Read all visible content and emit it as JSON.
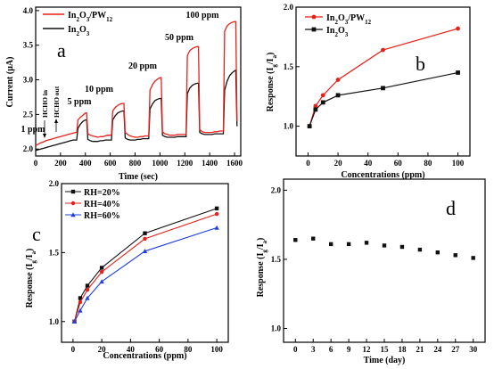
{
  "colors": {
    "red": "#e8201a",
    "black": "#111111",
    "blue": "#1f3fe0"
  },
  "chart_data": [
    {
      "panel": "a",
      "type": "line",
      "xlabel": "Time (sec)",
      "ylabel": "Current (μA)",
      "xlim": [
        0,
        1650
      ],
      "ylim": [
        1.9,
        4.05
      ],
      "xticks": [
        "0",
        "200",
        "400",
        "600",
        "800",
        "1000",
        "1200",
        "1400",
        "1600"
      ],
      "yticks": [
        "2.0",
        "2.5",
        "3.0",
        "3.5",
        "4.0"
      ],
      "legend_position": "top-left",
      "series": [
        {
          "name": "In2O3/PW12",
          "legend_main": "In",
          "legend_sub1": "2",
          "legend_mid": "O",
          "legend_sub2": "3",
          "legend_tail": "/PW",
          "legend_sub3": "12",
          "color": "red",
          "x": [
            0,
            20,
            40,
            60,
            80,
            100,
            120,
            140,
            160,
            180,
            200,
            220,
            240,
            260,
            280,
            300,
            320,
            330,
            340,
            360,
            380,
            400,
            410,
            420,
            440,
            460,
            480,
            500,
            520,
            540,
            560,
            580,
            600,
            610,
            620,
            640,
            660,
            680,
            700,
            710,
            720,
            740,
            760,
            780,
            800,
            820,
            840,
            860,
            880,
            900,
            910,
            920,
            940,
            960,
            980,
            1000,
            1010,
            1020,
            1040,
            1060,
            1080,
            1100,
            1120,
            1140,
            1160,
            1180,
            1200,
            1210,
            1220,
            1240,
            1260,
            1280,
            1300,
            1310,
            1320,
            1340,
            1360,
            1380,
            1400,
            1420,
            1440,
            1460,
            1480,
            1500,
            1510,
            1520,
            1540,
            1560,
            1580,
            1600,
            1610,
            1620
          ],
          "y": [
            2.05,
            2.07,
            2.09,
            2.1,
            2.12,
            2.13,
            2.14,
            2.15,
            2.16,
            2.17,
            2.18,
            2.19,
            2.2,
            2.21,
            2.22,
            2.23,
            2.24,
            2.24,
            2.42,
            2.46,
            2.49,
            2.52,
            2.52,
            2.22,
            2.2,
            2.19,
            2.18,
            2.17,
            2.18,
            2.18,
            2.19,
            2.2,
            2.2,
            2.2,
            2.55,
            2.6,
            2.63,
            2.65,
            2.66,
            2.66,
            2.24,
            2.21,
            2.19,
            2.18,
            2.17,
            2.17,
            2.18,
            2.18,
            2.19,
            2.19,
            2.19,
            2.85,
            2.93,
            2.98,
            3.01,
            3.03,
            3.03,
            2.25,
            2.22,
            2.21,
            2.2,
            2.2,
            2.2,
            2.21,
            2.21,
            2.21,
            2.21,
            2.21,
            3.35,
            3.42,
            3.45,
            3.47,
            3.48,
            3.48,
            2.28,
            2.25,
            2.24,
            2.24,
            2.24,
            2.24,
            2.25,
            2.25,
            2.26,
            2.26,
            2.26,
            3.7,
            3.78,
            3.81,
            3.83,
            3.84,
            3.84,
            2.4
          ]
        },
        {
          "name": "In2O3",
          "legend_main": "In",
          "legend_sub1": "2",
          "legend_mid": "O",
          "legend_sub2": "3",
          "color": "black",
          "x": [
            0,
            20,
            40,
            60,
            80,
            100,
            120,
            140,
            160,
            180,
            200,
            220,
            240,
            260,
            280,
            300,
            320,
            330,
            340,
            360,
            380,
            400,
            410,
            420,
            440,
            460,
            480,
            500,
            520,
            540,
            560,
            580,
            600,
            610,
            620,
            640,
            660,
            680,
            700,
            710,
            720,
            740,
            760,
            780,
            800,
            820,
            840,
            860,
            880,
            900,
            910,
            920,
            940,
            960,
            980,
            1000,
            1010,
            1020,
            1040,
            1060,
            1080,
            1100,
            1120,
            1140,
            1160,
            1180,
            1200,
            1210,
            1220,
            1240,
            1260,
            1280,
            1300,
            1310,
            1320,
            1340,
            1360,
            1380,
            1400,
            1420,
            1440,
            1460,
            1480,
            1500,
            1510,
            1520,
            1540,
            1560,
            1580,
            1600,
            1610,
            1620
          ],
          "y": [
            1.98,
            1.99,
            2.0,
            2.01,
            2.02,
            2.03,
            2.04,
            2.05,
            2.06,
            2.07,
            2.08,
            2.09,
            2.1,
            2.11,
            2.12,
            2.13,
            2.13,
            2.13,
            2.3,
            2.36,
            2.4,
            2.42,
            2.42,
            2.14,
            2.12,
            2.11,
            2.11,
            2.11,
            2.12,
            2.12,
            2.13,
            2.13,
            2.13,
            2.13,
            2.42,
            2.48,
            2.52,
            2.54,
            2.55,
            2.55,
            2.16,
            2.14,
            2.13,
            2.13,
            2.13,
            2.14,
            2.14,
            2.15,
            2.15,
            2.15,
            2.15,
            2.58,
            2.65,
            2.7,
            2.72,
            2.73,
            2.73,
            2.2,
            2.18,
            2.17,
            2.17,
            2.17,
            2.17,
            2.18,
            2.18,
            2.18,
            2.18,
            2.18,
            2.8,
            2.88,
            2.92,
            2.94,
            2.95,
            2.95,
            2.24,
            2.22,
            2.21,
            2.21,
            2.21,
            2.21,
            2.22,
            2.22,
            2.22,
            2.22,
            2.22,
            2.85,
            2.98,
            3.06,
            3.1,
            3.13,
            3.14,
            2.33
          ]
        }
      ],
      "annotations": {
        "conc": [
          "1 ppm",
          "5 ppm",
          "10 ppm",
          "20 ppm",
          "50 ppm",
          "100 ppm"
        ],
        "hcho_in": "HCHO in",
        "hcho_out": "HCHO out"
      }
    },
    {
      "panel": "b",
      "type": "line",
      "xlabel": "Concentrations (ppm)",
      "ylabel_main": "Response (I",
      "ylabel_sub1": "g",
      "ylabel_mid": "/I",
      "ylabel_sub2": "a",
      "ylabel_tail": ")",
      "xlim": [
        -8,
        108
      ],
      "ylim": [
        0.75,
        2.0
      ],
      "xticks": [
        "0",
        "20",
        "40",
        "60",
        "80",
        "100"
      ],
      "yticks": [
        "1.0",
        "1.5",
        "2.0"
      ],
      "legend_position": "top-left",
      "x": [
        1,
        5,
        10,
        20,
        50,
        100
      ],
      "series": [
        {
          "name": "In2O3/PW12",
          "legend_main": "In",
          "legend_sub1": "2",
          "legend_mid": "O",
          "legend_sub2": "3",
          "legend_tail": "/PW",
          "legend_sub3": "12",
          "color": "red",
          "marker": "circle",
          "values": [
            1.0,
            1.17,
            1.26,
            1.39,
            1.64,
            1.82
          ]
        },
        {
          "name": "In2O3",
          "legend_main": "In",
          "legend_sub1": "2",
          "legend_mid": "O",
          "legend_sub2": "3",
          "color": "black",
          "marker": "square",
          "values": [
            1.0,
            1.14,
            1.2,
            1.26,
            1.32,
            1.45
          ]
        }
      ]
    },
    {
      "panel": "c",
      "type": "line",
      "xlabel": "Concentrations (ppm)",
      "ylabel_main": "Response (I",
      "ylabel_sub1": "g",
      "ylabel_mid": "/I",
      "ylabel_sub2": "a",
      "ylabel_tail": ")",
      "xlim": [
        -8,
        108
      ],
      "ylim": [
        0.85,
        2.0
      ],
      "xticks": [
        "0",
        "20",
        "40",
        "60",
        "80",
        "100"
      ],
      "yticks": [
        "1.0",
        "1.5",
        "2.0"
      ],
      "legend_position": "top-left",
      "x": [
        1,
        5,
        10,
        20,
        50,
        100
      ],
      "series": [
        {
          "name": "RH=20%",
          "color": "black",
          "marker": "square",
          "values": [
            1.0,
            1.17,
            1.26,
            1.39,
            1.64,
            1.82
          ]
        },
        {
          "name": "RH=40%",
          "color": "red",
          "marker": "circle",
          "values": [
            1.0,
            1.14,
            1.23,
            1.36,
            1.6,
            1.78
          ]
        },
        {
          "name": "RH=60%",
          "color": "blue",
          "marker": "triangle",
          "values": [
            1.0,
            1.08,
            1.17,
            1.29,
            1.51,
            1.68
          ]
        }
      ]
    },
    {
      "panel": "d",
      "type": "scatter",
      "xlabel": "Time (day)",
      "ylabel_main": "Response (I",
      "ylabel_sub1": "g",
      "ylabel_mid": "/I",
      "ylabel_sub2": "a",
      "ylabel_tail": ")",
      "xlim": [
        -2,
        32
      ],
      "ylim": [
        0.9,
        2.08
      ],
      "xticks": [
        "0",
        "3",
        "6",
        "9",
        "12",
        "15",
        "18",
        "21",
        "24",
        "27",
        "30"
      ],
      "yticks": [
        "1.0",
        "1.5",
        "2.0"
      ],
      "series": [
        {
          "color": "black",
          "marker": "square",
          "x": [
            0,
            3,
            6,
            9,
            12,
            15,
            18,
            21,
            24,
            27,
            30
          ],
          "values": [
            1.64,
            1.65,
            1.61,
            1.61,
            1.62,
            1.6,
            1.59,
            1.57,
            1.55,
            1.53,
            1.51
          ]
        }
      ]
    }
  ]
}
